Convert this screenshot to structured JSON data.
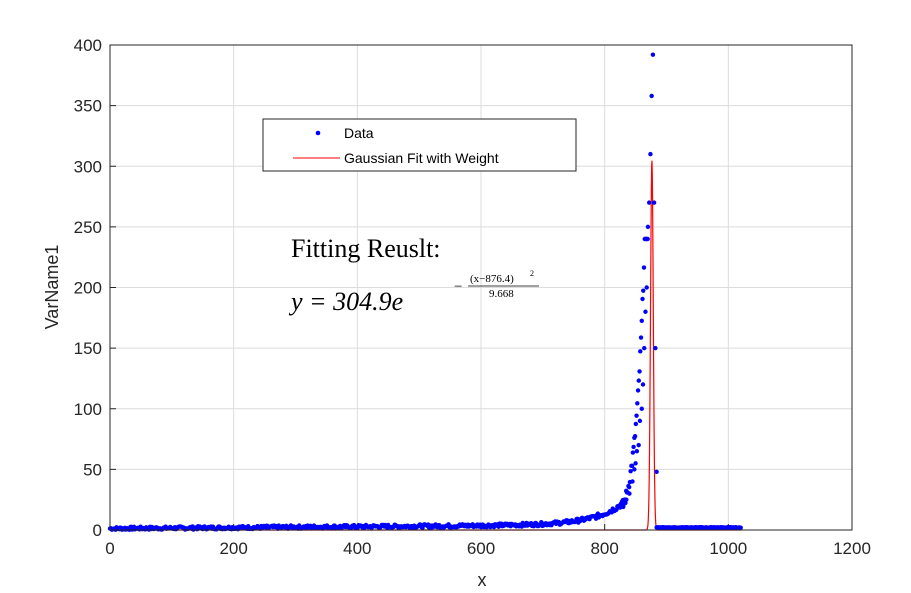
{
  "chart_data": {
    "type": "scatter",
    "title": "",
    "xlabel": "x",
    "ylabel": "VarName1",
    "xlim": [
      0,
      1200
    ],
    "ylim": [
      0,
      400
    ],
    "xticks": [
      "0",
      "200",
      "400",
      "600",
      "800",
      "1000",
      "1200"
    ],
    "yticks": [
      "0",
      "50",
      "100",
      "150",
      "200",
      "250",
      "300",
      "350",
      "400"
    ],
    "grid": true,
    "legend": {
      "placement": "upper-left-center",
      "entries": [
        "Data",
        "Gaussian Fit with Weight"
      ]
    },
    "series": [
      {
        "name": "Data",
        "kind": "points",
        "color": "#0000ff",
        "noisy_baseline": {
          "x_range": [
            0,
            850
          ],
          "approx_level": "near 0 to ~15 rising exponentially toward the peak"
        },
        "peak_points": {
          "x": [
            830,
            835,
            840,
            845,
            848,
            850,
            852,
            855,
            857,
            860,
            862,
            864,
            866,
            868,
            870,
            872,
            874,
            876,
            878,
            880,
            882,
            884
          ],
          "y": [
            20,
            25,
            30,
            40,
            50,
            55,
            65,
            70,
            90,
            100,
            120,
            150,
            180,
            200,
            250,
            270,
            310,
            358,
            392,
            270,
            150,
            48
          ]
        },
        "tail_points": {
          "x_range": [
            884,
            1020
          ],
          "y": 2
        }
      },
      {
        "name": "Gaussian Fit with Weight",
        "kind": "line",
        "color": "#ff0000",
        "model": {
          "amplitude": 304.9,
          "center": 876.4,
          "width_sq": 9.668
        }
      }
    ],
    "annotations": [
      "Fitting Reuslt:",
      "y = 304.9e",
      "(x−876.4)",
      "2",
      "9.668"
    ]
  }
}
